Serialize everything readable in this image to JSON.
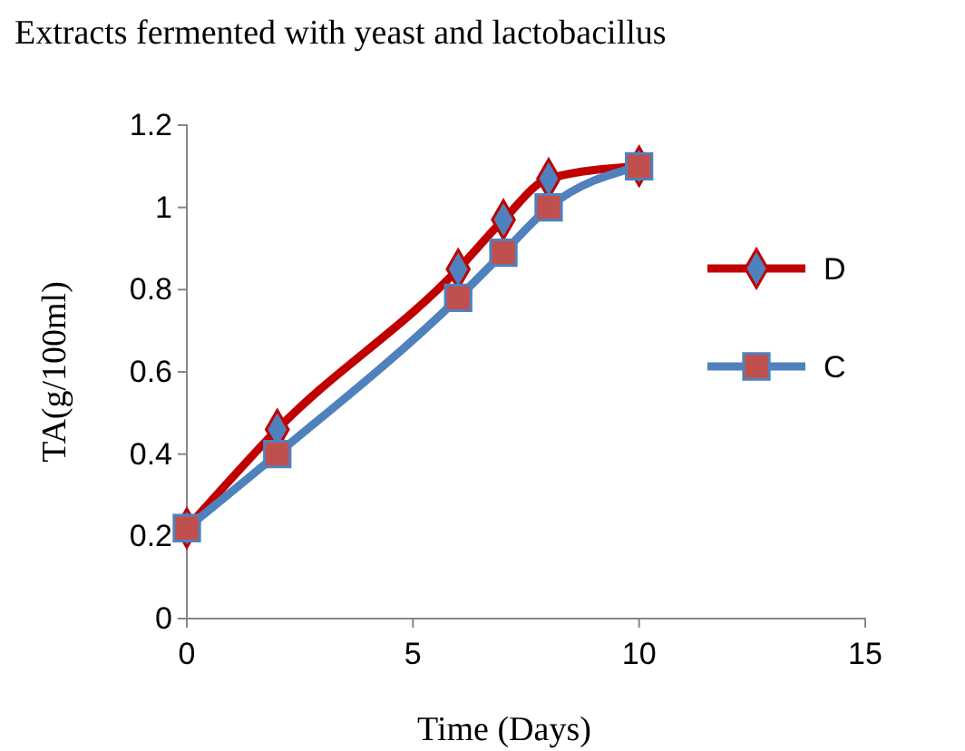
{
  "chart_data": {
    "type": "line",
    "title": "Extracts fermented with yeast and lactobacillus",
    "xlabel": "Time (Days)",
    "ylabel": "TA(g/100ml)",
    "x": [
      0,
      2,
      6,
      7,
      8,
      10
    ],
    "series": [
      {
        "name": "D",
        "color": "#c00000",
        "marker": "diamond",
        "values": [
          0.22,
          0.46,
          0.85,
          0.97,
          1.07,
          1.1
        ]
      },
      {
        "name": "C",
        "color": "#4f81bd",
        "marker": "square",
        "values": [
          0.22,
          0.4,
          0.78,
          0.89,
          1.0,
          1.1
        ]
      }
    ],
    "xlim": [
      0,
      15
    ],
    "xticks": [
      0,
      5,
      10,
      15
    ],
    "ylim": [
      0,
      1.2
    ],
    "yticks": [
      0,
      0.2,
      0.4,
      0.6,
      0.8,
      1,
      1.2
    ],
    "grid": false,
    "legend": "right"
  }
}
